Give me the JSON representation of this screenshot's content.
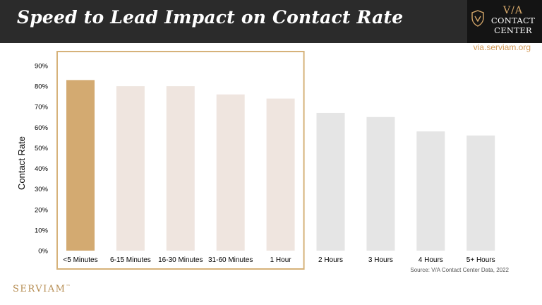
{
  "header": {
    "title": "Speed to Lead Impact on Contact Rate",
    "logo_via": "V/A",
    "logo_line1": "CONTACT",
    "logo_line2": "CENTER"
  },
  "site_url": "via.serviam.org",
  "source": "Source: V/A Contact Center Data, 2022",
  "brand": "SERVIAM",
  "brand_mark": "™",
  "colors": {
    "highlight": "#d3aa71",
    "group": "#efe5df",
    "rest": "#e5e5e5",
    "frame": "#d6b27a"
  },
  "chart_data": {
    "type": "bar",
    "categories": [
      "<5 Minutes",
      "6-15 Minutes",
      "16-30 Minutes",
      "31-60 Minutes",
      "1 Hour",
      "2 Hours",
      "3 Hours",
      "4 Hours",
      "5+ Hours"
    ],
    "values": [
      83,
      80,
      80,
      76,
      74,
      67,
      65,
      58,
      56
    ],
    "ylabel": "Contact Rate",
    "ylim": [
      0,
      90
    ],
    "yticks": [
      0,
      10,
      20,
      30,
      40,
      50,
      60,
      70,
      80,
      90
    ],
    "ytick_labels": [
      "0%",
      "10%",
      "20%",
      "30%",
      "40%",
      "50%",
      "60%",
      "70%",
      "80%",
      "90%"
    ],
    "highlight_index": 0,
    "framed_group": [
      0,
      4
    ],
    "grid": false
  }
}
